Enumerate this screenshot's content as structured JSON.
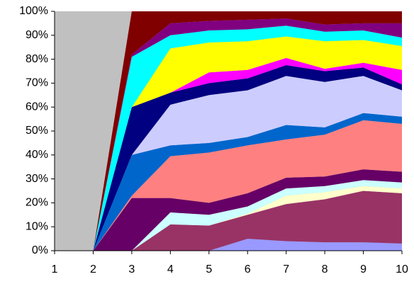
{
  "chart_data": {
    "type": "stacked-area-percent",
    "x": [
      1,
      2,
      3,
      4,
      5,
      6,
      7,
      8,
      9,
      10
    ],
    "xlim": [
      1,
      10
    ],
    "xticks": [
      1,
      2,
      3,
      4,
      5,
      6,
      7,
      8,
      9,
      10
    ],
    "ylim": [
      0,
      100
    ],
    "yticks": [
      {
        "value": 0,
        "label": "0%"
      },
      {
        "value": 10,
        "label": "10%"
      },
      {
        "value": 20,
        "label": "20%"
      },
      {
        "value": 30,
        "label": "30%"
      },
      {
        "value": 40,
        "label": "40%"
      },
      {
        "value": 50,
        "label": "50%"
      },
      {
        "value": 60,
        "label": "60%"
      },
      {
        "value": 70,
        "label": "70%"
      },
      {
        "value": 80,
        "label": "80%"
      },
      {
        "value": 90,
        "label": "90%"
      },
      {
        "value": 100,
        "label": "100%"
      }
    ],
    "plot_background": "#c0c0c0",
    "series": [
      {
        "color": "#9999ff",
        "values": [
          0,
          0,
          0,
          0,
          0,
          5,
          4,
          3.5,
          3.5,
          3
        ]
      },
      {
        "color": "#993366",
        "values": [
          0,
          0,
          0,
          11,
          10.5,
          10,
          15.5,
          18,
          21.5,
          21
        ]
      },
      {
        "color": "#ffffcc",
        "values": [
          0,
          0,
          0,
          0,
          0,
          0.5,
          3.5,
          3,
          2,
          2
        ]
      },
      {
        "color": "#ccffff",
        "values": [
          0,
          0,
          0,
          5,
          4.5,
          3,
          3,
          2.5,
          2.5,
          2.5
        ]
      },
      {
        "color": "#660066",
        "values": [
          0,
          0,
          22,
          6,
          5,
          5.5,
          4.5,
          4,
          4.5,
          4.5
        ]
      },
      {
        "color": "#ff8080",
        "values": [
          0,
          0,
          1,
          17.5,
          21,
          20,
          16,
          17.5,
          20.5,
          20
        ]
      },
      {
        "color": "#0066cc",
        "values": [
          0,
          0,
          17,
          4.5,
          4,
          3.5,
          6,
          3,
          3,
          3
        ]
      },
      {
        "color": "#ccccff",
        "values": [
          0,
          0,
          0,
          17,
          20,
          19.5,
          20.5,
          19,
          15.5,
          11
        ]
      },
      {
        "color": "#000080",
        "values": [
          0,
          0,
          20,
          5,
          5,
          5,
          4.5,
          4.5,
          3.5,
          2.5
        ]
      },
      {
        "color": "#ff00ff",
        "values": [
          0,
          0,
          0,
          0,
          4.5,
          3.5,
          3,
          1,
          2,
          6
        ]
      },
      {
        "color": "#ffff00",
        "values": [
          0,
          0,
          0,
          18.5,
          12.5,
          12,
          9,
          11.5,
          9.5,
          10
        ]
      },
      {
        "color": "#00ffff",
        "values": [
          0,
          0,
          21,
          5.5,
          5,
          5,
          4.5,
          4,
          4,
          3.5
        ]
      },
      {
        "color": "#800080",
        "values": [
          0,
          0,
          1,
          5,
          4,
          4,
          3,
          3,
          3,
          6
        ]
      },
      {
        "color": "#800000",
        "values": [
          0,
          0,
          18,
          5,
          4,
          3.5,
          3,
          5.5,
          5,
          5
        ]
      }
    ]
  }
}
